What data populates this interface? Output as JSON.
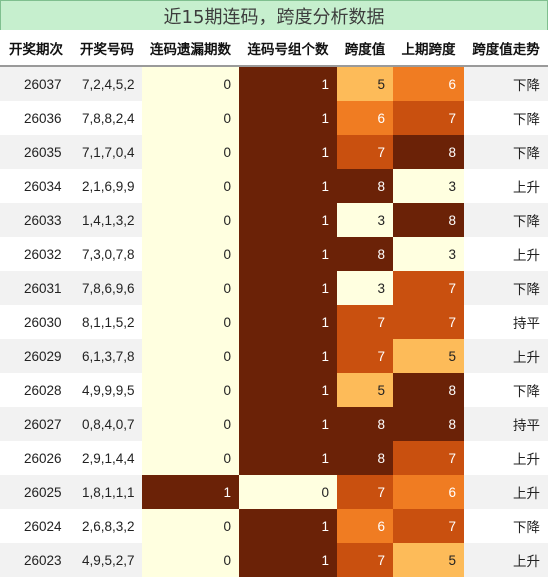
{
  "title": "近15期连码，跨度分析数据",
  "headers": [
    "开奖期次",
    "开奖号码",
    "连码遗漏期数",
    "连码号组个数",
    "跨度值",
    "上期跨度",
    "跨度值走势"
  ],
  "colors": {
    "title_bg": "#c6efce",
    "miss_zero_bg": "#ffffe0",
    "miss_one_bg": "#6b2207",
    "group_one_bg": "#6b2207",
    "group_zero_bg": "#ffffe0",
    "span_3": "#ffffe0",
    "span_5": "#fdbb59",
    "span_6": "#f07c22",
    "span_7": "#c9500f",
    "span_8": "#6b2207"
  },
  "rows": [
    {
      "issue": "26037",
      "nums": "7,2,4,5,2",
      "miss": "0",
      "group": "1",
      "span": "5",
      "prev": "6",
      "trend": "下降"
    },
    {
      "issue": "26036",
      "nums": "7,8,8,2,4",
      "miss": "0",
      "group": "1",
      "span": "6",
      "prev": "7",
      "trend": "下降"
    },
    {
      "issue": "26035",
      "nums": "7,1,7,0,4",
      "miss": "0",
      "group": "1",
      "span": "7",
      "prev": "8",
      "trend": "下降"
    },
    {
      "issue": "26034",
      "nums": "2,1,6,9,9",
      "miss": "0",
      "group": "1",
      "span": "8",
      "prev": "3",
      "trend": "上升"
    },
    {
      "issue": "26033",
      "nums": "1,4,1,3,2",
      "miss": "0",
      "group": "1",
      "span": "3",
      "prev": "8",
      "trend": "下降"
    },
    {
      "issue": "26032",
      "nums": "7,3,0,7,8",
      "miss": "0",
      "group": "1",
      "span": "8",
      "prev": "3",
      "trend": "上升"
    },
    {
      "issue": "26031",
      "nums": "7,8,6,9,6",
      "miss": "0",
      "group": "1",
      "span": "3",
      "prev": "7",
      "trend": "下降"
    },
    {
      "issue": "26030",
      "nums": "8,1,1,5,2",
      "miss": "0",
      "group": "1",
      "span": "7",
      "prev": "7",
      "trend": "持平"
    },
    {
      "issue": "26029",
      "nums": "6,1,3,7,8",
      "miss": "0",
      "group": "1",
      "span": "7",
      "prev": "5",
      "trend": "上升"
    },
    {
      "issue": "26028",
      "nums": "4,9,9,9,5",
      "miss": "0",
      "group": "1",
      "span": "5",
      "prev": "8",
      "trend": "下降"
    },
    {
      "issue": "26027",
      "nums": "0,8,4,0,7",
      "miss": "0",
      "group": "1",
      "span": "8",
      "prev": "8",
      "trend": "持平"
    },
    {
      "issue": "26026",
      "nums": "2,9,1,4,4",
      "miss": "0",
      "group": "1",
      "span": "8",
      "prev": "7",
      "trend": "上升"
    },
    {
      "issue": "26025",
      "nums": "1,8,1,1,1",
      "miss": "1",
      "group": "0",
      "span": "7",
      "prev": "6",
      "trend": "上升"
    },
    {
      "issue": "26024",
      "nums": "2,6,8,3,2",
      "miss": "0",
      "group": "1",
      "span": "6",
      "prev": "7",
      "trend": "下降"
    },
    {
      "issue": "26023",
      "nums": "4,9,5,2,7",
      "miss": "0",
      "group": "1",
      "span": "7",
      "prev": "5",
      "trend": "上升"
    }
  ]
}
